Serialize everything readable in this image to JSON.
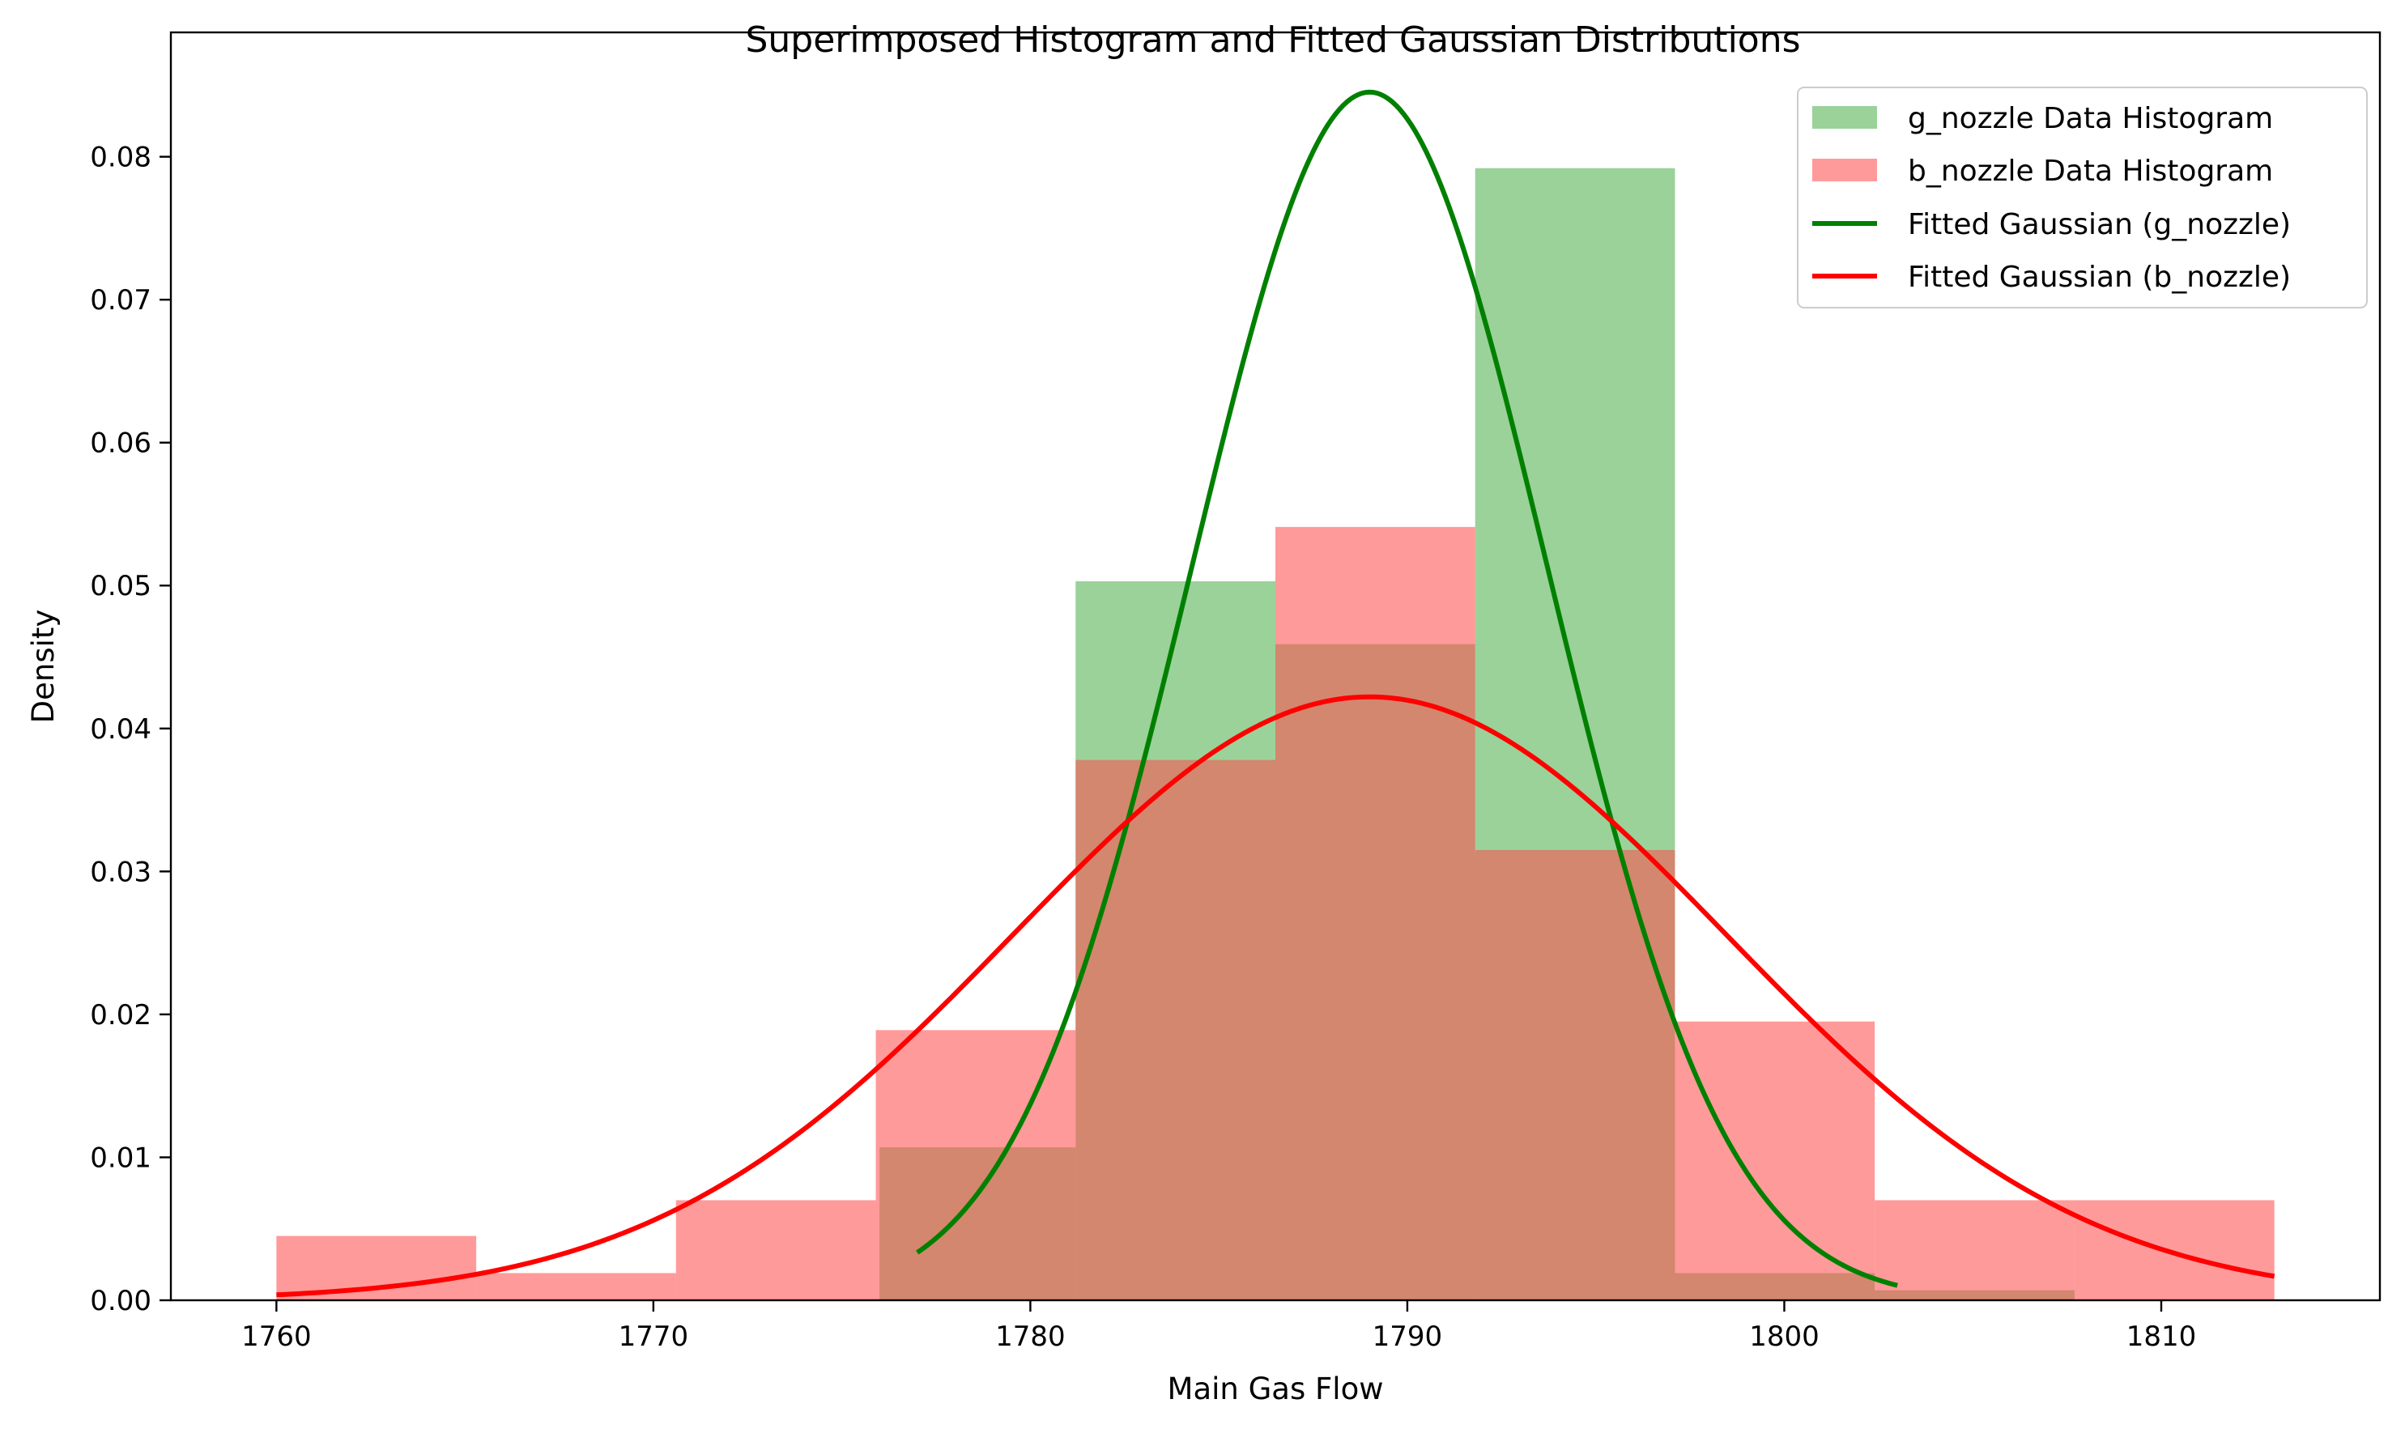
{
  "chart_data": {
    "type": "bar",
    "title": "Superimposed Histogram and Fitted Gaussian Distributions",
    "xlabel": "Main Gas Flow",
    "ylabel": "Density",
    "xlim": [
      1757.2,
      1815.8
    ],
    "ylim": [
      0,
      0.0887
    ],
    "xticks": [
      1760,
      1770,
      1780,
      1790,
      1800,
      1810
    ],
    "xtick_labels": [
      "1760",
      "1770",
      "1780",
      "1790",
      "1800",
      "1810"
    ],
    "yticks": [
      0,
      0.01,
      0.02,
      0.03,
      0.04,
      0.05,
      0.06,
      0.07,
      0.08
    ],
    "ytick_labels": [
      "0.00",
      "0.01",
      "0.02",
      "0.03",
      "0.04",
      "0.05",
      "0.06",
      "0.07",
      "0.08"
    ],
    "grid": false,
    "legend_position": "top-right",
    "histograms": [
      {
        "name": "g_nozzle Data Histogram",
        "color": "#2ca02c",
        "alpha": 0.48,
        "bins": [
          {
            "x0": 1776.0,
            "x1": 1781.2,
            "value": 0.0107
          },
          {
            "x0": 1781.2,
            "x1": 1786.5,
            "value": 0.0503
          },
          {
            "x0": 1786.5,
            "x1": 1791.8,
            "value": 0.0459
          },
          {
            "x0": 1791.8,
            "x1": 1797.1,
            "value": 0.0792
          },
          {
            "x0": 1797.1,
            "x1": 1802.4,
            "value": 0.0019
          },
          {
            "x0": 1802.4,
            "x1": 1807.7,
            "value": 0.0007
          }
        ]
      },
      {
        "name": "b_nozzle Data Histogram",
        "color": "#ff4d4d",
        "alpha": 0.57,
        "bins": [
          {
            "x0": 1760.0,
            "x1": 1765.3,
            "value": 0.0045
          },
          {
            "x0": 1765.3,
            "x1": 1770.6,
            "value": 0.0019
          },
          {
            "x0": 1770.6,
            "x1": 1775.9,
            "value": 0.007
          },
          {
            "x0": 1775.9,
            "x1": 1781.2,
            "value": 0.0189
          },
          {
            "x0": 1781.2,
            "x1": 1786.5,
            "value": 0.0378
          },
          {
            "x0": 1786.5,
            "x1": 1791.8,
            "value": 0.0541
          },
          {
            "x0": 1791.8,
            "x1": 1797.1,
            "value": 0.0315
          },
          {
            "x0": 1797.1,
            "x1": 1802.4,
            "value": 0.0195
          },
          {
            "x0": 1802.4,
            "x1": 1807.7,
            "value": 0.007
          },
          {
            "x0": 1807.7,
            "x1": 1813.0,
            "value": 0.007
          }
        ]
      }
    ],
    "curves": [
      {
        "name": "Fitted Gaussian (g_nozzle)",
        "color": "#008000",
        "mean": 1789.0,
        "std": 4.72,
        "x_range": [
          1777.0,
          1803.0
        ]
      },
      {
        "name": "Fitted Gaussian (b_nozzle)",
        "color": "#ff0000",
        "mean": 1789.0,
        "std": 9.45,
        "x_range": [
          1760.0,
          1813.0
        ]
      }
    ]
  }
}
